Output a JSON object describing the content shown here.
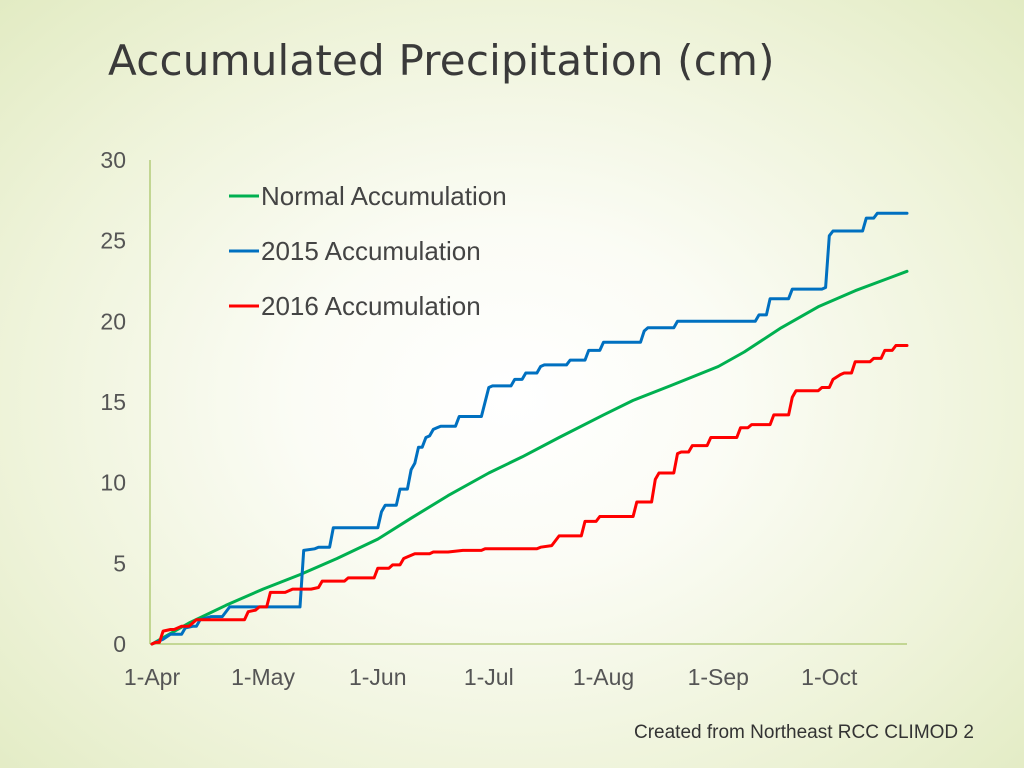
{
  "chart_data": {
    "type": "line",
    "title": "Accumulated Precipitation (cm)",
    "x_unit": "day of season (0 = 1-Apr)",
    "xlim": [
      0,
      204
    ],
    "ylim": [
      0,
      30
    ],
    "y_ticks": [
      0,
      5,
      10,
      15,
      20,
      25,
      30
    ],
    "x_ticks": [
      {
        "label": "1-Apr",
        "value": 0
      },
      {
        "label": "1-May",
        "value": 30
      },
      {
        "label": "1-Jun",
        "value": 61
      },
      {
        "label": "1-Jul",
        "value": 91
      },
      {
        "label": "1-Aug",
        "value": 122
      },
      {
        "label": "1-Sep",
        "value": 153
      },
      {
        "label": "1-Oct",
        "value": 183
      }
    ],
    "legend_position": "top-left",
    "series": [
      {
        "name": "Normal Accumulation",
        "color": "#00b050",
        "points": [
          [
            0,
            0
          ],
          [
            10,
            1.3
          ],
          [
            20,
            2.4
          ],
          [
            30,
            3.4
          ],
          [
            40,
            4.3
          ],
          [
            50,
            5.3
          ],
          [
            61,
            6.5
          ],
          [
            70,
            7.8
          ],
          [
            80,
            9.2
          ],
          [
            91,
            10.6
          ],
          [
            100,
            11.6
          ],
          [
            110,
            12.8
          ],
          [
            122,
            14.2
          ],
          [
            130,
            15.1
          ],
          [
            140,
            16
          ],
          [
            153,
            17.2
          ],
          [
            160,
            18.1
          ],
          [
            170,
            19.6
          ],
          [
            180,
            20.9
          ],
          [
            190,
            21.9
          ],
          [
            204,
            23.1
          ]
        ]
      },
      {
        "name": "2015 Accumulation",
        "color": "#0070c0",
        "points": [
          [
            0,
            0
          ],
          [
            3,
            0.3
          ],
          [
            5,
            0.6
          ],
          [
            8,
            0.6
          ],
          [
            9,
            1
          ],
          [
            11,
            1.1
          ],
          [
            12,
            1.1
          ],
          [
            13,
            1.5
          ],
          [
            16,
            1.7
          ],
          [
            19,
            1.7
          ],
          [
            21,
            2.3
          ],
          [
            31,
            2.3
          ],
          [
            40,
            2.3
          ],
          [
            41,
            5.8
          ],
          [
            44,
            5.9
          ],
          [
            45,
            6
          ],
          [
            48,
            6
          ],
          [
            49,
            7.2
          ],
          [
            61,
            7.2
          ],
          [
            62,
            8.2
          ],
          [
            63,
            8.6
          ],
          [
            66,
            8.6
          ],
          [
            67,
            9.6
          ],
          [
            69,
            9.6
          ],
          [
            70,
            10.8
          ],
          [
            71,
            11.2
          ],
          [
            72,
            12.2
          ],
          [
            73,
            12.2
          ],
          [
            74,
            12.8
          ],
          [
            75,
            12.9
          ],
          [
            76,
            13.3
          ],
          [
            77,
            13.4
          ],
          [
            78,
            13.5
          ],
          [
            82,
            13.5
          ],
          [
            83,
            14.1
          ],
          [
            89,
            14.1
          ],
          [
            90,
            15
          ],
          [
            91,
            15.9
          ],
          [
            92,
            16
          ],
          [
            97,
            16
          ],
          [
            98,
            16.4
          ],
          [
            100,
            16.4
          ],
          [
            101,
            16.8
          ],
          [
            104,
            16.8
          ],
          [
            105,
            17.2
          ],
          [
            106,
            17.3
          ],
          [
            112,
            17.3
          ],
          [
            113,
            17.6
          ],
          [
            117,
            17.6
          ],
          [
            118,
            18.2
          ],
          [
            121,
            18.2
          ],
          [
            122,
            18.7
          ],
          [
            132,
            18.7
          ],
          [
            133,
            19.4
          ],
          [
            134,
            19.6
          ],
          [
            141,
            19.6
          ],
          [
            142,
            20
          ],
          [
            151,
            20
          ],
          [
            163,
            20
          ],
          [
            164,
            20.4
          ],
          [
            166,
            20.4
          ],
          [
            167,
            21.4
          ],
          [
            172,
            21.4
          ],
          [
            173,
            22
          ],
          [
            181,
            22
          ],
          [
            182,
            22.1
          ],
          [
            183,
            25.3
          ],
          [
            184,
            25.6
          ],
          [
            192,
            25.6
          ],
          [
            193,
            26.4
          ],
          [
            195,
            26.4
          ],
          [
            196,
            26.7
          ],
          [
            200,
            26.7
          ],
          [
            204,
            26.7
          ]
        ]
      },
      {
        "name": "2016 Accumulation",
        "color": "#ff0000",
        "points": [
          [
            0,
            0
          ],
          [
            1,
            0.1
          ],
          [
            2,
            0.1
          ],
          [
            3,
            0.8
          ],
          [
            5,
            0.9
          ],
          [
            6,
            0.9
          ],
          [
            7,
            1
          ],
          [
            8,
            1.1
          ],
          [
            10,
            1.1
          ],
          [
            11,
            1.3
          ],
          [
            12,
            1.5
          ],
          [
            20,
            1.5
          ],
          [
            25,
            1.5
          ],
          [
            26,
            2
          ],
          [
            28,
            2.1
          ],
          [
            29,
            2.3
          ],
          [
            31,
            2.3
          ],
          [
            32,
            3.2
          ],
          [
            36,
            3.2
          ],
          [
            37,
            3.3
          ],
          [
            38,
            3.4
          ],
          [
            43,
            3.4
          ],
          [
            45,
            3.5
          ],
          [
            46,
            3.9
          ],
          [
            52,
            3.9
          ],
          [
            53,
            4.1
          ],
          [
            60,
            4.1
          ],
          [
            61,
            4.7
          ],
          [
            64,
            4.7
          ],
          [
            65,
            4.9
          ],
          [
            67,
            4.9
          ],
          [
            68,
            5.3
          ],
          [
            69,
            5.4
          ],
          [
            71,
            5.6
          ],
          [
            75,
            5.6
          ],
          [
            76,
            5.7
          ],
          [
            80,
            5.7
          ],
          [
            84,
            5.8
          ],
          [
            89,
            5.8
          ],
          [
            90,
            5.9
          ],
          [
            104,
            5.9
          ],
          [
            105,
            6
          ],
          [
            108,
            6.1
          ],
          [
            110,
            6.7
          ],
          [
            116,
            6.7
          ],
          [
            117,
            7.6
          ],
          [
            120,
            7.6
          ],
          [
            121,
            7.9
          ],
          [
            128,
            7.9
          ],
          [
            130,
            7.9
          ],
          [
            131,
            8.8
          ],
          [
            135,
            8.8
          ],
          [
            136,
            10.2
          ],
          [
            137,
            10.6
          ],
          [
            141,
            10.6
          ],
          [
            142,
            11.8
          ],
          [
            143,
            11.9
          ],
          [
            145,
            11.9
          ],
          [
            146,
            12.3
          ],
          [
            150,
            12.3
          ],
          [
            151,
            12.8
          ],
          [
            158,
            12.8
          ],
          [
            159,
            13.4
          ],
          [
            161,
            13.4
          ],
          [
            162,
            13.6
          ],
          [
            167,
            13.6
          ],
          [
            168,
            14.2
          ],
          [
            172,
            14.2
          ],
          [
            173,
            15.3
          ],
          [
            174,
            15.7
          ],
          [
            180,
            15.7
          ],
          [
            181,
            15.9
          ],
          [
            183,
            15.9
          ],
          [
            184,
            16.4
          ],
          [
            186,
            16.7
          ],
          [
            187,
            16.8
          ],
          [
            189,
            16.8
          ],
          [
            190,
            17.5
          ],
          [
            194,
            17.5
          ],
          [
            195,
            17.7
          ],
          [
            197,
            17.7
          ],
          [
            198,
            18.2
          ],
          [
            200,
            18.2
          ],
          [
            201,
            18.5
          ],
          [
            204,
            18.5
          ]
        ]
      }
    ]
  },
  "footer": {
    "source": "Created from Northeast RCC CLIMOD 2"
  }
}
